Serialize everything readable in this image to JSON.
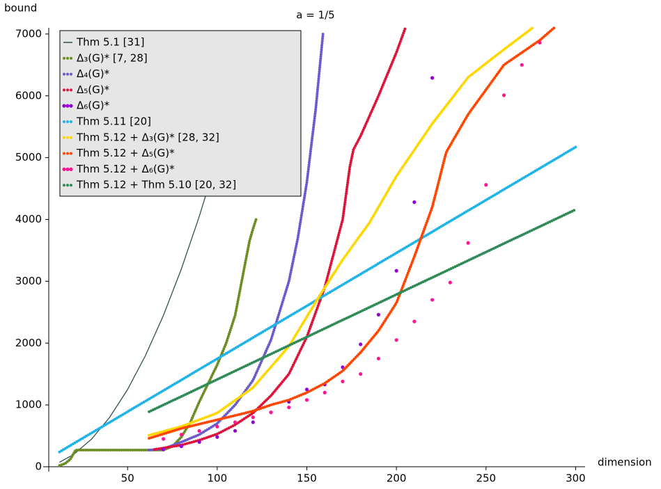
{
  "chart_data": {
    "type": "scatter",
    "title": "a = 1/5",
    "x_label": "dimension",
    "y_label": "bound",
    "xlim": [
      6,
      301
    ],
    "ylim": [
      0,
      7100
    ],
    "xticks": [
      50,
      100,
      150,
      200,
      250,
      300
    ],
    "yticks": [
      0,
      1000,
      2000,
      3000,
      4000,
      5000,
      6000,
      7000
    ],
    "legend": "upper left",
    "series": [
      {
        "name": "Thm 5.1 [31]",
        "color": "#2f4f4f",
        "style": "line",
        "x": [
          12,
          20,
          30,
          40,
          50,
          60,
          70,
          80,
          90,
          100,
          110,
          118
        ],
        "values": [
          72,
          200,
          450,
          800,
          1250,
          1800,
          2450,
          3200,
          4050,
          5000,
          6050,
          6962
        ]
      },
      {
        "name": "Δ₃(G)* [7, 28]",
        "color": "#6b8e23",
        "style": "dotted",
        "x": [
          12,
          15,
          18,
          21,
          30,
          40,
          50,
          60,
          70,
          75,
          80,
          85,
          90,
          95,
          100,
          105,
          110,
          113,
          116,
          118,
          120,
          122
        ],
        "values": [
          20,
          50,
          120,
          270,
          270,
          270,
          270,
          270,
          270,
          330,
          480,
          720,
          1050,
          1350,
          1650,
          2000,
          2450,
          2900,
          3350,
          3650,
          3850,
          4030
        ]
      },
      {
        "name": "Δ₄(G)*",
        "color": "#6a5acd",
        "style": "dotted",
        "x": [
          62,
          70,
          80,
          90,
          100,
          110,
          120,
          130,
          140,
          145,
          150,
          155,
          159
        ],
        "values": [
          270,
          290,
          400,
          520,
          700,
          1000,
          1400,
          2050,
          3000,
          3700,
          4600,
          5800,
          7000
        ]
      },
      {
        "name": "Δ₅(G)*",
        "color": "#dc143c",
        "style": "dotted",
        "x": [
          65,
          80,
          90,
          100,
          110,
          120,
          130,
          140,
          150,
          160,
          170,
          174,
          176,
          180,
          190,
          200,
          205
        ],
        "values": [
          280,
          350,
          430,
          530,
          680,
          870,
          1150,
          1500,
          2100,
          2900,
          4000,
          4850,
          5130,
          5350,
          6000,
          6700,
          7100
        ]
      },
      {
        "name": "Δ₆(G)*",
        "color": "#9400d3",
        "style": "dots",
        "x": [
          70,
          80,
          90,
          100,
          110,
          120,
          130,
          140,
          150,
          160,
          170,
          180,
          190,
          200,
          210,
          220
        ],
        "values": [
          280,
          330,
          400,
          480,
          580,
          720,
          880,
          1050,
          1250,
          1330,
          1610,
          1980,
          2460,
          3170,
          4280,
          6290
        ]
      },
      {
        "name": "Thm 5.11 [20]",
        "color": "#1eb4e8",
        "style": "dotted",
        "x": [
          12,
          300
        ],
        "values": [
          240,
          5170
        ]
      },
      {
        "name": "Thm 5.12 + Δ₃(G)* [28, 32]",
        "color": "#ffd700",
        "style": "dotted",
        "x": [
          62,
          80,
          100,
          120,
          140,
          157,
          170,
          185,
          200,
          220,
          240,
          260,
          276
        ],
        "values": [
          510,
          650,
          870,
          1280,
          1950,
          2760,
          3350,
          3950,
          4700,
          5550,
          6300,
          6750,
          7100
        ]
      },
      {
        "name": "Thm 5.12 + Δ₅(G)*",
        "color": "#ff4500",
        "style": "dotted",
        "x": [
          62,
          80,
          100,
          120,
          130,
          140,
          150,
          160,
          170,
          180,
          190,
          200,
          210,
          220,
          227,
          228,
          240,
          260,
          280,
          288
        ],
        "values": [
          460,
          620,
          760,
          900,
          1000,
          1080,
          1200,
          1350,
          1550,
          1850,
          2200,
          2650,
          3400,
          4200,
          5000,
          5100,
          5700,
          6500,
          6900,
          7100
        ]
      },
      {
        "name": "Thm 5.12 + Δ₆(G)*",
        "color": "#ff1493",
        "style": "dots",
        "x": [
          70,
          80,
          90,
          100,
          110,
          120,
          130,
          140,
          150,
          160,
          170,
          180,
          190,
          200,
          210,
          220,
          230,
          240,
          250,
          260,
          270,
          280
        ],
        "values": [
          450,
          520,
          580,
          650,
          720,
          800,
          880,
          960,
          1080,
          1200,
          1380,
          1500,
          1750,
          2050,
          2350,
          2700,
          2980,
          3620,
          4560,
          6010,
          6500,
          6860
        ]
      },
      {
        "name": "Thm 5.12 + Thm 5.10 [20, 32]",
        "color": "#2e8b57",
        "style": "dotted",
        "x": [
          62,
          300
        ],
        "values": [
          890,
          4160
        ]
      }
    ]
  }
}
